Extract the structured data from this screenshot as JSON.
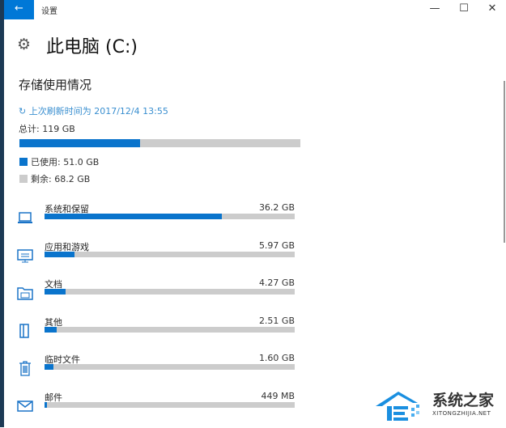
{
  "window": {
    "title": "设置",
    "back_icon": "arrow-left-icon",
    "controls": [
      "minimize-icon",
      "maximize-icon",
      "close-icon"
    ]
  },
  "page": {
    "title": "此电脑 (C:)",
    "icon": "gear-icon"
  },
  "storage": {
    "heading": "存储使用情况",
    "refresh": "上次刷新时间为 2017/12/4 13:55",
    "total": "总计: 119 GB",
    "used_fraction": 0.43,
    "used": "已使用: 51.0 GB",
    "free": "剩余: 68.2 GB",
    "accent_color": "#0a74cc",
    "track_color": "#cccccc"
  },
  "items": [
    {
      "label": "系统和保留",
      "value": "36.2 GB",
      "fraction": 0.71,
      "icon": "laptop-icon"
    },
    {
      "label": "应用和游戏",
      "value": "5.97 GB",
      "fraction": 0.12,
      "icon": "monitor-keyboard-icon"
    },
    {
      "label": "文档",
      "value": "4.27 GB",
      "fraction": 0.085,
      "icon": "folder-icon"
    },
    {
      "label": "其他",
      "value": "2.51 GB",
      "fraction": 0.05,
      "icon": "other-files-icon"
    },
    {
      "label": "临时文件",
      "value": "1.60 GB",
      "fraction": 0.035,
      "icon": "trash-icon"
    },
    {
      "label": "邮件",
      "value": "449 MB",
      "fraction": 0.01,
      "icon": "mail-icon"
    }
  ],
  "watermark": {
    "name": "系统之家",
    "url": "XITONGZHIJIA.NET"
  }
}
